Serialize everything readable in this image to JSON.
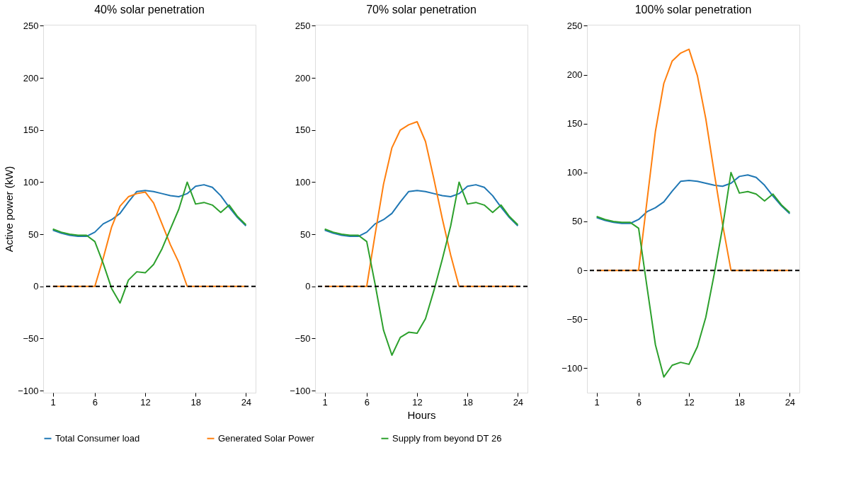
{
  "chart_data": [
    {
      "type": "line",
      "title": "40% solar penetration",
      "ylabel": "Active power (kW)",
      "x": [
        1,
        2,
        3,
        4,
        5,
        6,
        7,
        8,
        9,
        10,
        11,
        12,
        13,
        14,
        15,
        16,
        17,
        18,
        19,
        20,
        21,
        22,
        23,
        24
      ],
      "series": [
        {
          "name": "Total Consumer load",
          "color": "#1f77b4",
          "values": [
            54,
            51,
            49,
            48,
            48,
            52,
            60,
            64,
            70,
            81,
            91,
            92,
            91,
            89,
            87,
            86,
            89,
            96,
            97.5,
            95,
            87,
            76,
            66,
            58
          ]
        },
        {
          "name": "Generated Solar Power",
          "color": "#ff7f0e",
          "values": [
            0,
            0,
            0,
            0,
            0,
            0,
            27,
            57,
            77,
            86,
            89,
            90.5,
            80,
            60,
            40,
            23,
            0,
            0,
            0,
            0,
            0,
            0,
            0,
            0
          ]
        },
        {
          "name": "Supply from beyond DT 26",
          "color": "#2ca02c",
          "values": [
            55,
            52,
            50,
            49,
            49,
            43,
            22,
            -2,
            -16,
            6,
            14,
            13,
            21,
            36,
            55,
            74,
            100,
            79,
            80.5,
            78,
            71,
            78,
            67,
            59
          ]
        }
      ],
      "xlim": [
        -0.15,
        25.15
      ],
      "xticks": [
        1,
        6,
        12,
        18,
        24
      ],
      "ylim": [
        -102,
        251
      ],
      "yticks": [
        -100,
        -50,
        0,
        50,
        100,
        150,
        200,
        250
      ],
      "ref_lines": [
        {
          "axis": "y",
          "value": 0,
          "color": "#000000",
          "line_style": "dashed"
        }
      ],
      "grid": false,
      "legend": "bottom"
    },
    {
      "type": "line",
      "title": "70% solar penetration",
      "xlabel": "Hours",
      "x": [
        1,
        2,
        3,
        4,
        5,
        6,
        7,
        8,
        9,
        10,
        11,
        12,
        13,
        14,
        15,
        16,
        17,
        18,
        19,
        20,
        21,
        22,
        23,
        24
      ],
      "series": [
        {
          "name": "Total Consumer load",
          "color": "#1f77b4",
          "values": [
            54,
            51,
            49,
            48,
            48,
            52,
            60,
            64,
            70,
            81,
            91,
            92,
            91,
            89,
            87,
            86,
            89,
            96,
            97.5,
            95,
            87,
            76,
            66,
            58
          ]
        },
        {
          "name": "Generated Solar Power",
          "color": "#ff7f0e",
          "values": [
            0,
            0,
            0,
            0,
            0,
            0,
            50,
            98,
            133,
            150,
            155,
            158,
            139,
            103,
            65,
            30,
            0,
            0,
            0,
            0,
            0,
            0,
            0,
            0
          ]
        },
        {
          "name": "Supply from beyond DT 26",
          "color": "#2ca02c",
          "values": [
            55,
            52,
            50,
            49,
            49,
            43,
            2,
            -42,
            -66,
            -49,
            -44,
            -45,
            -31,
            -4,
            26,
            58,
            100,
            79,
            80.5,
            78,
            71,
            78,
            67,
            59
          ]
        }
      ],
      "xlim": [
        -0.15,
        25.15
      ],
      "xticks": [
        1,
        6,
        12,
        18,
        24
      ],
      "ylim": [
        -102,
        251
      ],
      "yticks": [
        -100,
        -50,
        0,
        50,
        100,
        150,
        200,
        250
      ],
      "ref_lines": [
        {
          "axis": "y",
          "value": 0,
          "color": "#000000",
          "line_style": "dashed"
        }
      ],
      "grid": false,
      "legend": "bottom"
    },
    {
      "type": "line",
      "title": "100% solar penetration",
      "x": [
        1,
        2,
        3,
        4,
        5,
        6,
        7,
        8,
        9,
        10,
        11,
        12,
        13,
        14,
        15,
        16,
        17,
        18,
        19,
        20,
        21,
        22,
        23,
        24
      ],
      "series": [
        {
          "name": "Total Consumer load",
          "color": "#1f77b4",
          "values": [
            54,
            51,
            49,
            48,
            48,
            52,
            60,
            64,
            70,
            81,
            91,
            92,
            91,
            89,
            87,
            86,
            89,
            96,
            97.5,
            95,
            87,
            76,
            66,
            58
          ]
        },
        {
          "name": "Generated Solar Power",
          "color": "#ff7f0e",
          "values": [
            0,
            0,
            0,
            0,
            0,
            0,
            71,
            142,
            191,
            214,
            222,
            226,
            199,
            155,
            100,
            47,
            0,
            0,
            0,
            0,
            0,
            0,
            0,
            0
          ]
        },
        {
          "name": "Supply from beyond DT 26",
          "color": "#2ca02c",
          "values": [
            55,
            52,
            50,
            49,
            49,
            43,
            -17,
            -76,
            -109,
            -97,
            -94,
            -96,
            -78,
            -48,
            -4,
            44,
            100,
            79,
            80.5,
            78,
            71,
            78,
            67,
            59
          ]
        }
      ],
      "xlim": [
        -0.15,
        25.15
      ],
      "xticks": [
        1,
        6,
        12,
        18,
        24
      ],
      "ylim": [
        -125,
        251
      ],
      "yticks": [
        -100,
        -50,
        0,
        50,
        100,
        150,
        200,
        250
      ],
      "ref_lines": [
        {
          "axis": "y",
          "value": 0,
          "color": "#000000",
          "line_style": "dashed"
        }
      ],
      "grid": false,
      "legend": "bottom"
    }
  ]
}
